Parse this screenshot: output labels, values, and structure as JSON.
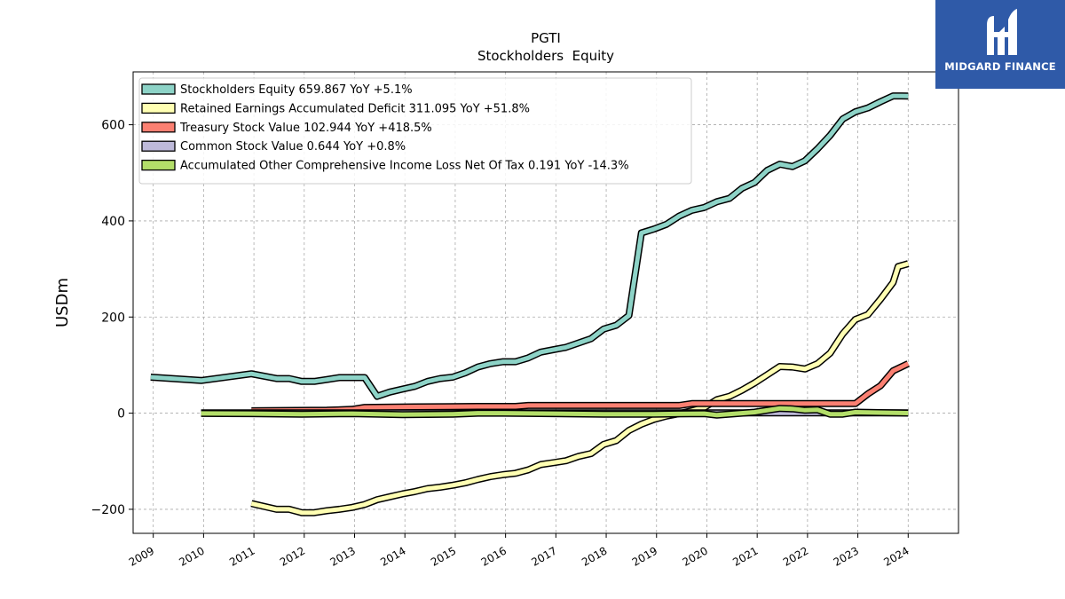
{
  "brand": {
    "name": "MIDGARD FINANCE",
    "bg_color": "#2f5aa8",
    "icon": "midgard-logo-icon"
  },
  "chart_data": {
    "type": "line",
    "title": "PGTI",
    "subtitle": "Stockholders  Equity",
    "xlabel": "",
    "ylabel": "USDm",
    "xlim": [
      2008.6,
      2025.0
    ],
    "ylim": [
      -250,
      710
    ],
    "yticks": [
      -200,
      0,
      200,
      400,
      600
    ],
    "ytick_labels": [
      "−200",
      "0",
      "200",
      "400",
      "600"
    ],
    "xticks": [
      2009,
      2010,
      2011,
      2012,
      2013,
      2014,
      2015,
      2016,
      2017,
      2018,
      2019,
      2020,
      2021,
      2022,
      2023,
      2024
    ],
    "xtick_labels": [
      "2009",
      "2010",
      "2011",
      "2012",
      "2013",
      "2014",
      "2015",
      "2016",
      "2017",
      "2018",
      "2019",
      "2020",
      "2021",
      "2022",
      "2023",
      "2024"
    ],
    "grid": true,
    "legend_position": "upper-left",
    "series": [
      {
        "name": "Stockholders Equity",
        "legend": "Stockholders Equity  659.867 YoY +5.1%",
        "color": "#8dd3c7",
        "points": [
          [
            2008.95,
            75
          ],
          [
            2009.95,
            68
          ],
          [
            2010.95,
            82
          ],
          [
            2011.45,
            72
          ],
          [
            2011.7,
            72
          ],
          [
            2011.95,
            66
          ],
          [
            2012.2,
            66
          ],
          [
            2012.45,
            70
          ],
          [
            2012.7,
            74
          ],
          [
            2012.95,
            74
          ],
          [
            2013.2,
            74
          ],
          [
            2013.45,
            35
          ],
          [
            2013.7,
            44
          ],
          [
            2013.95,
            50
          ],
          [
            2014.2,
            56
          ],
          [
            2014.45,
            66
          ],
          [
            2014.7,
            72
          ],
          [
            2014.95,
            75
          ],
          [
            2015.2,
            84
          ],
          [
            2015.45,
            96
          ],
          [
            2015.7,
            103
          ],
          [
            2015.95,
            107
          ],
          [
            2016.2,
            107
          ],
          [
            2016.45,
            115
          ],
          [
            2016.7,
            127
          ],
          [
            2016.95,
            132
          ],
          [
            2017.2,
            137
          ],
          [
            2017.45,
            146
          ],
          [
            2017.7,
            155
          ],
          [
            2017.95,
            175
          ],
          [
            2018.2,
            183
          ],
          [
            2018.45,
            203
          ],
          [
            2018.7,
            375
          ],
          [
            2018.95,
            383
          ],
          [
            2019.2,
            393
          ],
          [
            2019.45,
            410
          ],
          [
            2019.7,
            422
          ],
          [
            2019.95,
            428
          ],
          [
            2020.2,
            440
          ],
          [
            2020.45,
            447
          ],
          [
            2020.7,
            468
          ],
          [
            2020.95,
            480
          ],
          [
            2021.2,
            505
          ],
          [
            2021.45,
            518
          ],
          [
            2021.7,
            513
          ],
          [
            2021.95,
            525
          ],
          [
            2022.2,
            550
          ],
          [
            2022.45,
            578
          ],
          [
            2022.7,
            612
          ],
          [
            2022.95,
            627
          ],
          [
            2023.2,
            635
          ],
          [
            2023.45,
            648
          ],
          [
            2023.7,
            660
          ],
          [
            2024.0,
            659.867
          ]
        ]
      },
      {
        "name": "Retained Earnings Accumulated Deficit",
        "legend": "Retained Earnings Accumulated Deficit  311.095 YoY +51.8%",
        "color": "#ffffb3",
        "points": [
          [
            2010.95,
            -188
          ],
          [
            2011.45,
            -200
          ],
          [
            2011.7,
            -200
          ],
          [
            2011.95,
            -207
          ],
          [
            2012.2,
            -207
          ],
          [
            2012.45,
            -203
          ],
          [
            2012.7,
            -200
          ],
          [
            2012.95,
            -196
          ],
          [
            2013.2,
            -190
          ],
          [
            2013.45,
            -180
          ],
          [
            2013.7,
            -174
          ],
          [
            2013.95,
            -168
          ],
          [
            2014.2,
            -163
          ],
          [
            2014.45,
            -157
          ],
          [
            2014.7,
            -154
          ],
          [
            2014.95,
            -150
          ],
          [
            2015.2,
            -145
          ],
          [
            2015.45,
            -138
          ],
          [
            2015.7,
            -132
          ],
          [
            2015.95,
            -128
          ],
          [
            2016.2,
            -125
          ],
          [
            2016.45,
            -118
          ],
          [
            2016.7,
            -107
          ],
          [
            2016.95,
            -103
          ],
          [
            2017.2,
            -99
          ],
          [
            2017.45,
            -90
          ],
          [
            2017.7,
            -84
          ],
          [
            2017.95,
            -65
          ],
          [
            2018.2,
            -57
          ],
          [
            2018.45,
            -36
          ],
          [
            2018.7,
            -23
          ],
          [
            2018.95,
            -13
          ],
          [
            2019.2,
            -6
          ],
          [
            2019.45,
            -1
          ],
          [
            2019.7,
            5
          ],
          [
            2019.95,
            12
          ],
          [
            2020.2,
            28
          ],
          [
            2020.45,
            35
          ],
          [
            2020.7,
            48
          ],
          [
            2020.95,
            63
          ],
          [
            2021.2,
            80
          ],
          [
            2021.45,
            97
          ],
          [
            2021.7,
            96
          ],
          [
            2021.95,
            92
          ],
          [
            2022.2,
            103
          ],
          [
            2022.45,
            125
          ],
          [
            2022.7,
            165
          ],
          [
            2022.95,
            195
          ],
          [
            2023.2,
            205
          ],
          [
            2023.45,
            237
          ],
          [
            2023.7,
            272
          ],
          [
            2023.8,
            305
          ],
          [
            2024.0,
            311.095
          ]
        ]
      },
      {
        "name": "Treasury Stock Value",
        "legend": "Treasury Stock Value  102.944 YoY +418.5%",
        "color": "#fb8072",
        "points": [
          [
            2010.95,
            5
          ],
          [
            2012.45,
            6
          ],
          [
            2012.95,
            8
          ],
          [
            2013.2,
            12
          ],
          [
            2014.2,
            13
          ],
          [
            2015.45,
            14
          ],
          [
            2016.2,
            14
          ],
          [
            2016.45,
            16
          ],
          [
            2019.45,
            16
          ],
          [
            2019.7,
            20
          ],
          [
            2022.95,
            20
          ],
          [
            2023.2,
            40
          ],
          [
            2023.45,
            57
          ],
          [
            2023.7,
            88
          ],
          [
            2024.0,
            102.944
          ]
        ]
      },
      {
        "name": "Common Stock Value",
        "legend": "Common Stock Value  0.644 YoY +0.8%",
        "color": "#bebada",
        "points": [
          [
            2009.95,
            0.5
          ],
          [
            2024.0,
            0.644
          ]
        ]
      },
      {
        "name": "Accumulated Other Comprehensive Income Loss Net Of Tax",
        "legend": "Accumulated Other Comprehensive Income Loss Net Of Tax  0.191 YoY -14.3%",
        "color": "#b3de69",
        "points": [
          [
            2009.95,
            -0.5
          ],
          [
            2010.95,
            -1
          ],
          [
            2011.95,
            -2
          ],
          [
            2012.95,
            -1
          ],
          [
            2013.95,
            -3
          ],
          [
            2014.95,
            -2
          ],
          [
            2015.45,
            0
          ],
          [
            2015.95,
            0
          ],
          [
            2016.95,
            -1
          ],
          [
            2017.95,
            -2
          ],
          [
            2018.95,
            -2
          ],
          [
            2019.95,
            -1
          ],
          [
            2020.2,
            -4
          ],
          [
            2020.95,
            2
          ],
          [
            2021.2,
            6
          ],
          [
            2021.45,
            10
          ],
          [
            2021.7,
            9
          ],
          [
            2021.95,
            6
          ],
          [
            2022.2,
            7
          ],
          [
            2022.45,
            -2
          ],
          [
            2022.7,
            -2
          ],
          [
            2022.95,
            2
          ],
          [
            2023.45,
            1
          ],
          [
            2024.0,
            0.191
          ]
        ]
      }
    ]
  }
}
